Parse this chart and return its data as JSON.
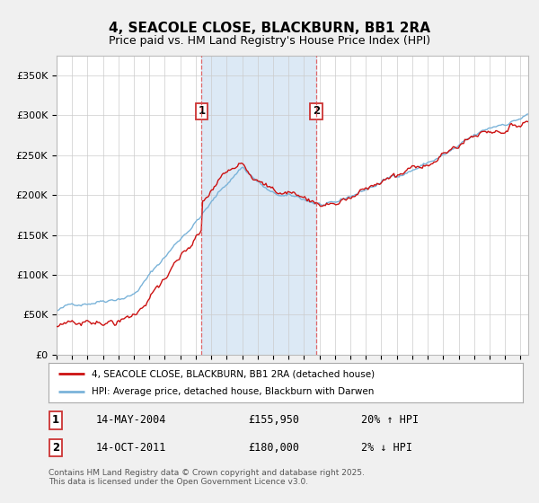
{
  "title": "4, SEACOLE CLOSE, BLACKBURN, BB1 2RA",
  "subtitle": "Price paid vs. HM Land Registry's House Price Index (HPI)",
  "ylabel_ticks": [
    "£0",
    "£50K",
    "£100K",
    "£150K",
    "£200K",
    "£250K",
    "£300K",
    "£350K"
  ],
  "ytick_values": [
    0,
    50000,
    100000,
    150000,
    200000,
    250000,
    300000,
    350000
  ],
  "ylim": [
    0,
    375000
  ],
  "xlim_start": 1995.0,
  "xlim_end": 2025.5,
  "purchase1_x": 2004.37,
  "purchase1_y": 155950,
  "purchase2_x": 2011.79,
  "purchase2_y": 180000,
  "shade_color": "#dce9f5",
  "dashed_line_color": "#e05050",
  "hpi_line_color": "#7ab3d9",
  "price_line_color": "#cc1111",
  "background_color": "#f0f0f0",
  "plot_bg_color": "#ffffff",
  "legend_line1": "4, SEACOLE CLOSE, BLACKBURN, BB1 2RA (detached house)",
  "legend_line2": "HPI: Average price, detached house, Blackburn with Darwen",
  "table_row1": [
    "1",
    "14-MAY-2004",
    "£155,950",
    "20% ↑ HPI"
  ],
  "table_row2": [
    "2",
    "14-OCT-2011",
    "£180,000",
    "2% ↓ HPI"
  ],
  "footnote": "Contains HM Land Registry data © Crown copyright and database right 2025.\nThis data is licensed under the Open Government Licence v3.0.",
  "title_fontsize": 11,
  "subtitle_fontsize": 9,
  "tick_fontsize": 8
}
